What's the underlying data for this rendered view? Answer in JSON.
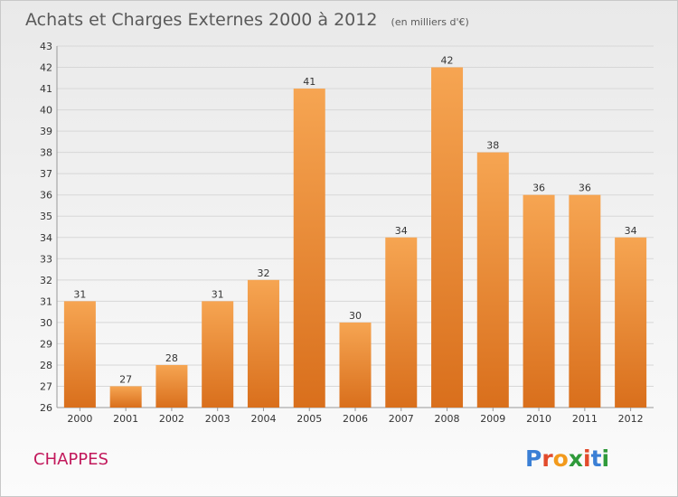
{
  "header": {
    "title": "Achats et Charges Externes 2000 à 2012",
    "unit": "(en milliers d'€)"
  },
  "footer": {
    "commune": "CHAPPES",
    "commune_color": "#c2185b",
    "brand": "Proxiti",
    "brand_colors": [
      "#3a7fd5",
      "#e24b2c",
      "#f29a1c",
      "#2f9a3a",
      "#e24b2c",
      "#3a7fd5",
      "#2f9a3a"
    ]
  },
  "colors": {
    "bar_top": "#f6a552",
    "bar_bottom": "#d96f1c",
    "grid": "#d7d7d7",
    "axis": "#999999"
  },
  "chart_data": {
    "type": "bar",
    "title": "Achats et Charges Externes 2000 à 2012",
    "subtitle": "(en milliers d'€)",
    "xlabel": "",
    "ylabel": "",
    "categories": [
      "2000",
      "2001",
      "2002",
      "2003",
      "2004",
      "2005",
      "2006",
      "2007",
      "2008",
      "2009",
      "2010",
      "2011",
      "2012"
    ],
    "values": [
      31,
      27,
      28,
      31,
      32,
      41,
      30,
      34,
      42,
      38,
      36,
      36,
      34
    ],
    "ylim": [
      26,
      43
    ],
    "yticks": [
      26,
      27,
      28,
      29,
      30,
      31,
      32,
      33,
      34,
      35,
      36,
      37,
      38,
      39,
      40,
      41,
      42,
      43
    ],
    "grid": true,
    "legend": "none"
  }
}
